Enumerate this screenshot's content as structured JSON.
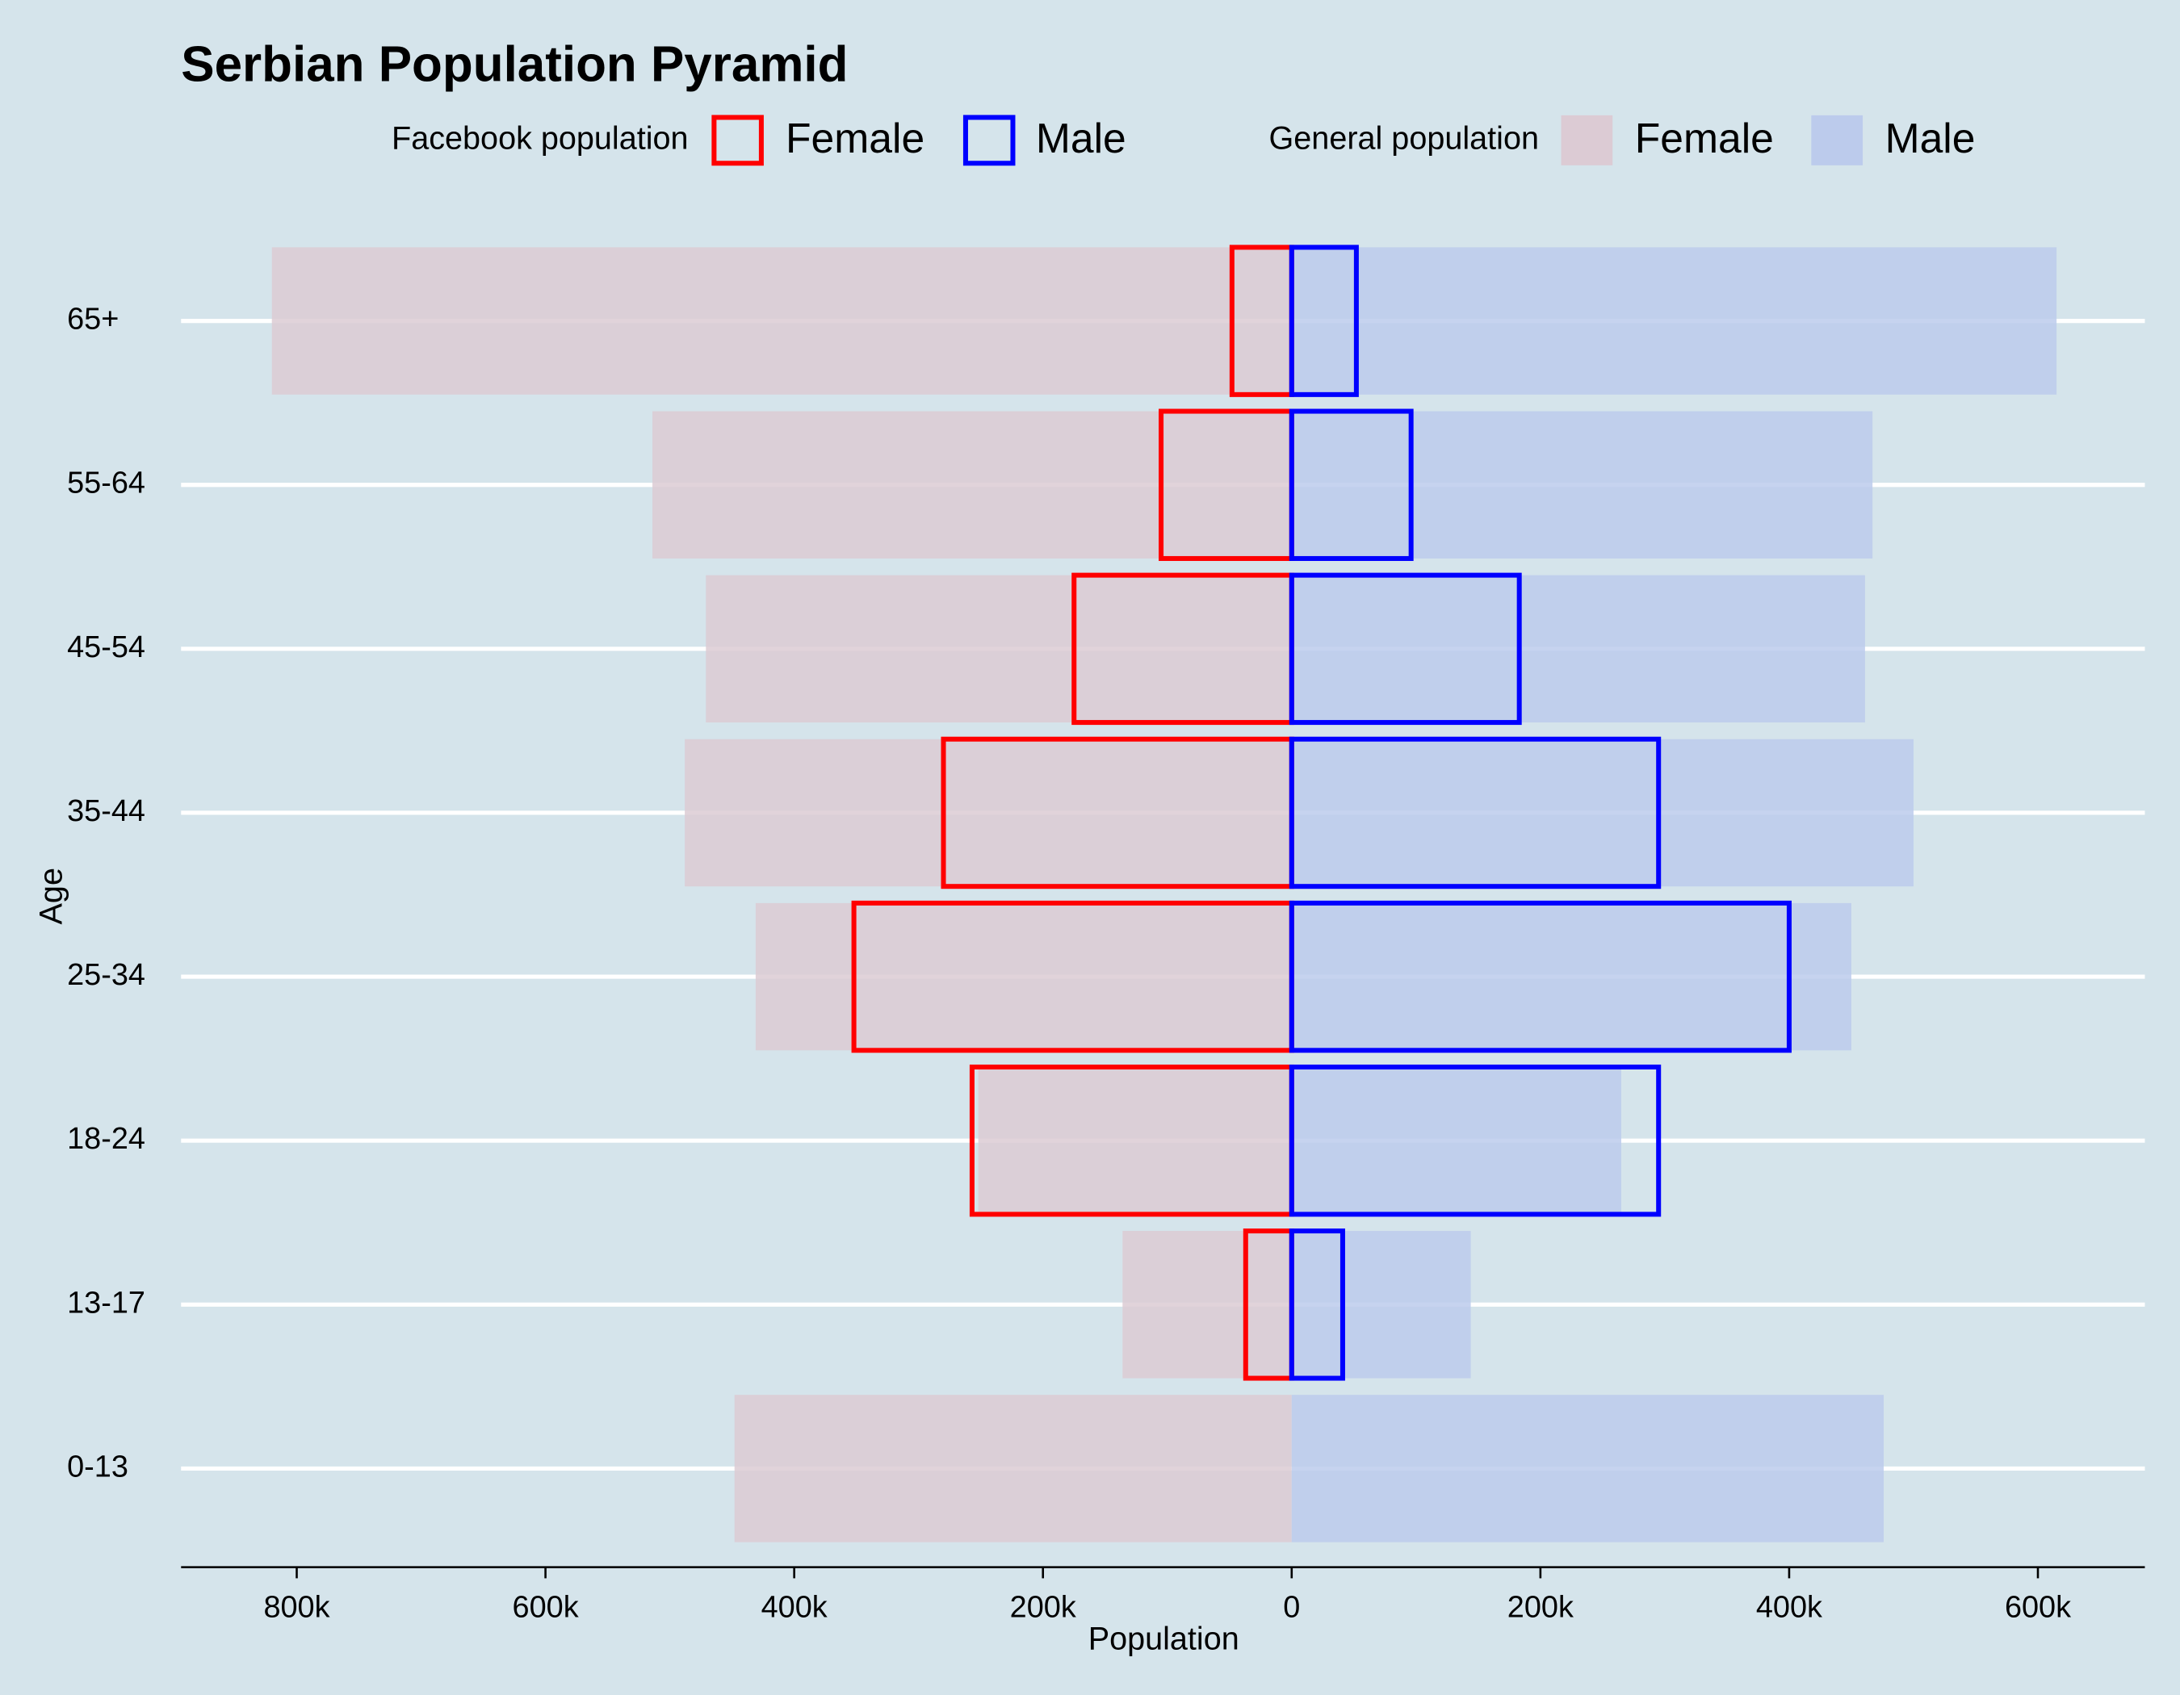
{
  "chart_data": {
    "type": "bar",
    "title": "Serbian Population Pyramid",
    "x_label": "Population",
    "y_label": "Age",
    "categories": [
      "0-13",
      "13-17",
      "18-24",
      "25-34",
      "35-44",
      "45-54",
      "55-64",
      "65+"
    ],
    "xlim": [
      -893000,
      686000
    ],
    "xticks": [
      {
        "value": -800000,
        "label": "800k"
      },
      {
        "value": -600000,
        "label": "600k"
      },
      {
        "value": -400000,
        "label": "400k"
      },
      {
        "value": -200000,
        "label": "200k"
      },
      0,
      {
        "value": 200000,
        "label": "200k"
      },
      {
        "value": 400000,
        "label": "400k"
      },
      {
        "value": 600000,
        "label": "600k"
      }
    ],
    "grid": true,
    "groups": [
      {
        "title": "Facebook population",
        "style": "outline",
        "series": [
          {
            "name": "Female",
            "color": "#ff0000",
            "values": [
              0,
              -37000,
              -257000,
              -352000,
              -280000,
              -175000,
              -105000,
              -48000
            ]
          },
          {
            "name": "Male",
            "color": "#0000ff",
            "values": [
              0,
              41000,
              295000,
              400000,
              295000,
              183000,
              96000,
              52000
            ]
          }
        ]
      },
      {
        "title": "General population",
        "style": "fill",
        "series": [
          {
            "name": "Female",
            "color": "#dccbd4",
            "values": [
              -448000,
              -136000,
              -252000,
              -431000,
              -488000,
              -471000,
              -514000,
              -820000
            ]
          },
          {
            "name": "Male",
            "color": "#bccbec",
            "values": [
              476000,
              144000,
              265000,
              450000,
              500000,
              461000,
              467000,
              615000
            ]
          }
        ]
      }
    ]
  }
}
